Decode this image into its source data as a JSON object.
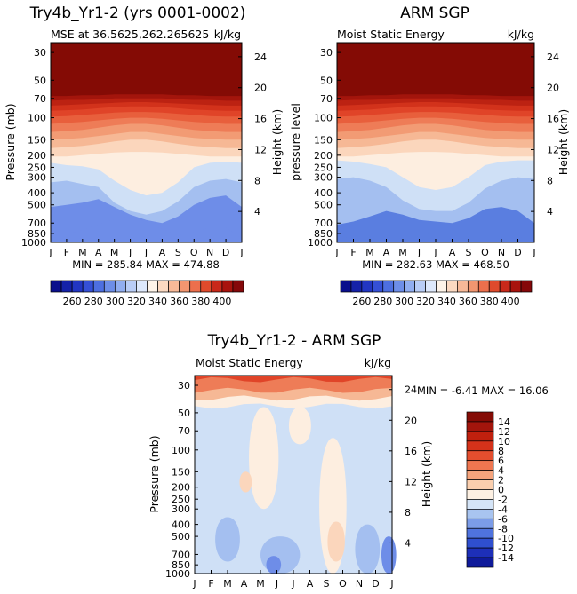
{
  "chart_data": [
    {
      "type": "heatmap",
      "title": "Try4b_Yr1-2 (yrs 0001-0002)",
      "subtitle_left": "MSE at 36.5625,262.265625",
      "subtitle_right": "kJ/kg",
      "xlabel": "",
      "ylabel": "Pressure (mb)",
      "y2label": "Height (km)",
      "months": [
        "J",
        "F",
        "M",
        "A",
        "M",
        "J",
        "J",
        "A",
        "S",
        "O",
        "N",
        "D",
        "J"
      ],
      "pressure_ticks": [
        "30",
        "50",
        "70",
        "100",
        "150",
        "200",
        "250",
        "300",
        "400",
        "500",
        "700",
        "850",
        "1000"
      ],
      "height_ticks": [
        "4",
        "8",
        "12",
        "16",
        "20",
        "24"
      ],
      "stats": "MIN = 285.84 MAX = 474.88",
      "colorbar_labels": [
        "260",
        "280",
        "300",
        "320",
        "340",
        "360",
        "380",
        "400"
      ],
      "bands": [
        [
          1000,
          880,
          850,
          800,
          720,
          650,
          620,
          690,
          780,
          880,
          820,
          760,
          760,
          930
        ],
        [
          1000,
          520,
          500,
          480,
          450,
          520,
          600,
          660,
          700,
          620,
          500,
          440,
          420,
          520
        ],
        [
          1000,
          330,
          320,
          340,
          360,
          480,
          560,
          600,
          560,
          470,
          360,
          320,
          310,
          330
        ],
        [
          1000,
          230,
          240,
          245,
          260,
          320,
          380,
          420,
          400,
          330,
          250,
          230,
          225,
          230
        ],
        [
          1000,
          205,
          205,
          200,
          195,
          190,
          188,
          188,
          190,
          195,
          200,
          205,
          205,
          205
        ],
        [
          1000,
          175,
          172,
          168,
          162,
          155,
          150,
          150,
          155,
          162,
          168,
          172,
          175,
          175
        ],
        [
          1000,
          150,
          148,
          145,
          140,
          135,
          130,
          130,
          135,
          140,
          145,
          148,
          150,
          150
        ],
        [
          1000,
          130,
          128,
          125,
          120,
          115,
          112,
          112,
          115,
          120,
          125,
          128,
          130,
          130
        ],
        [
          1000,
          112,
          110,
          108,
          105,
          102,
          100,
          100,
          102,
          105,
          108,
          110,
          112,
          112
        ],
        [
          1000,
          98,
          97,
          95,
          93,
          91,
          90,
          90,
          91,
          93,
          95,
          97,
          98,
          98
        ],
        [
          1000,
          88,
          87,
          86,
          84,
          82,
          81,
          81,
          82,
          84,
          86,
          87,
          88,
          88
        ],
        [
          1000,
          80,
          79,
          78,
          77,
          76,
          75,
          75,
          76,
          77,
          78,
          79,
          80,
          80
        ],
        [
          1000,
          73,
          72,
          72,
          71,
          70,
          70,
          70,
          70,
          71,
          72,
          72,
          73,
          73
        ],
        [
          1000,
          67,
          67,
          66,
          66,
          65,
          65,
          65,
          65,
          66,
          66,
          67,
          67,
          67
        ]
      ],
      "band_colors": [
        "#6e8de8",
        "#a4bff0",
        "#cfe0f6",
        "#fdeee0",
        "#fbd6bc",
        "#f6b895",
        "#f29b74",
        "#ee7c57",
        "#e85f3c",
        "#e04428",
        "#d2321b",
        "#bc2212",
        "#a3150c",
        "#840b05"
      ]
    },
    {
      "type": "heatmap",
      "title": "ARM SGP",
      "subtitle_left": "Moist Static Energy",
      "subtitle_right": "kJ/kg",
      "xlabel": "",
      "ylabel": "pressure level",
      "y2label": "Height (km)",
      "months": [
        "J",
        "F",
        "M",
        "A",
        "M",
        "J",
        "J",
        "A",
        "S",
        "O",
        "N",
        "D",
        "J"
      ],
      "pressure_ticks": [
        "30",
        "50",
        "70",
        "100",
        "150",
        "200",
        "250",
        "300",
        "400",
        "500",
        "700",
        "850",
        "1000"
      ],
      "height_ticks": [
        "4",
        "8",
        "12",
        "16",
        "20",
        "24"
      ],
      "stats": "MIN = 282.63 MAX = 468.50",
      "colorbar_labels": [
        "260",
        "280",
        "300",
        "320",
        "340",
        "360",
        "380",
        "400"
      ],
      "bands": [
        [
          1000,
          930,
          900,
          860,
          800,
          760,
          800,
          880,
          900,
          860,
          800,
          820,
          900,
          960
        ],
        [
          1000,
          720,
          680,
          620,
          560,
          600,
          660,
          680,
          700,
          640,
          540,
          520,
          560,
          700
        ],
        [
          1000,
          310,
          300,
          320,
          360,
          460,
          540,
          560,
          560,
          480,
          370,
          320,
          300,
          310
        ],
        [
          1000,
          220,
          225,
          235,
          250,
          300,
          360,
          380,
          360,
          300,
          240,
          225,
          220,
          220
        ],
        [
          1000,
          205,
          205,
          200,
          195,
          190,
          188,
          188,
          190,
          195,
          200,
          205,
          205,
          205
        ],
        [
          1000,
          175,
          172,
          168,
          162,
          155,
          150,
          150,
          155,
          162,
          168,
          172,
          175,
          175
        ],
        [
          1000,
          150,
          148,
          145,
          140,
          135,
          130,
          130,
          135,
          140,
          145,
          148,
          150,
          150
        ],
        [
          1000,
          130,
          128,
          125,
          120,
          115,
          112,
          112,
          115,
          120,
          125,
          128,
          130,
          130
        ],
        [
          1000,
          112,
          110,
          108,
          105,
          102,
          100,
          100,
          102,
          105,
          108,
          110,
          112,
          112
        ],
        [
          1000,
          98,
          97,
          95,
          93,
          91,
          90,
          90,
          91,
          93,
          95,
          97,
          98,
          98
        ],
        [
          1000,
          88,
          87,
          86,
          84,
          82,
          81,
          81,
          82,
          84,
          86,
          87,
          88,
          88
        ],
        [
          1000,
          80,
          79,
          78,
          77,
          76,
          75,
          75,
          76,
          77,
          78,
          79,
          80,
          80
        ],
        [
          1000,
          73,
          72,
          72,
          71,
          70,
          70,
          70,
          70,
          71,
          72,
          72,
          73,
          73
        ],
        [
          1000,
          67,
          67,
          66,
          66,
          65,
          65,
          65,
          65,
          66,
          66,
          67,
          67,
          67
        ]
      ],
      "band_colors": [
        "#5a7ee0",
        "#a4bff0",
        "#cfe0f6",
        "#fdeee0",
        "#fbd6bc",
        "#f6b895",
        "#f29b74",
        "#ee7c57",
        "#e85f3c",
        "#e04428",
        "#d2321b",
        "#bc2212",
        "#a3150c",
        "#840b05"
      ]
    },
    {
      "type": "heatmap",
      "title": "Try4b_Yr1-2 - ARM SGP",
      "subtitle_left": "Moist Static Energy",
      "subtitle_right": "kJ/kg",
      "xlabel": "",
      "ylabel": "Pressure (mb)",
      "y2label": "Height (km)",
      "months": [
        "J",
        "F",
        "M",
        "A",
        "M",
        "J",
        "J",
        "A",
        "S",
        "O",
        "N",
        "D",
        "J"
      ],
      "pressure_ticks": [
        "30",
        "50",
        "70",
        "100",
        "150",
        "200",
        "250",
        "300",
        "400",
        "500",
        "700",
        "850",
        "1000"
      ],
      "height_ticks": [
        "4",
        "8",
        "12",
        "16",
        "20",
        "24"
      ],
      "stats": "MIN =  -6.41 MAX =  16.06",
      "colorbar_labels": [
        "14",
        "12",
        "10",
        "8",
        "6",
        "4",
        "2",
        "0",
        "-2",
        "-4",
        "-6",
        "-8",
        "-10",
        "-12",
        "-14"
      ],
      "background_color": "#cfe0f6",
      "blobs": [
        {
          "month": 4.2,
          "p_top": 45,
          "p_bot": 300,
          "hw": 1.2,
          "color": "#fdeee0"
        },
        {
          "month": 6.4,
          "p_top": 45,
          "p_bot": 90,
          "hw": 0.9,
          "color": "#fdeee0"
        },
        {
          "month": 8.4,
          "p_top": 80,
          "p_bot": 1000,
          "hw": 1.1,
          "color": "#fdeee0"
        },
        {
          "month": 3.1,
          "p_top": 150,
          "p_bot": 220,
          "hw": 0.5,
          "color": "#fbd6bc"
        },
        {
          "month": 8.6,
          "p_top": 380,
          "p_bot": 800,
          "hw": 0.7,
          "color": "#fbd6bc"
        },
        {
          "month": 2.0,
          "p_top": 350,
          "p_bot": 800,
          "hw": 1.0,
          "color": "#a4bff0"
        },
        {
          "month": 5.2,
          "p_top": 500,
          "p_bot": 1000,
          "hw": 1.6,
          "color": "#a4bff0"
        },
        {
          "month": 10.5,
          "p_top": 400,
          "p_bot": 1000,
          "hw": 1.0,
          "color": "#a4bff0"
        },
        {
          "month": 11.8,
          "p_top": 500,
          "p_bot": 1000,
          "hw": 0.6,
          "color": "#6e8de8"
        },
        {
          "month": 4.8,
          "p_top": 720,
          "p_bot": 1000,
          "hw": 0.6,
          "color": "#6e8de8"
        }
      ],
      "top_bands": [
        {
          "p_max": 27,
          "color": "#e04428"
        },
        {
          "p_max": 33,
          "color": "#ee7c57"
        },
        {
          "p_max": 38,
          "color": "#f6b895"
        },
        {
          "p_max": 44,
          "color": "#fdeee0"
        }
      ],
      "colorbar_colors": [
        "#840b05",
        "#a3150c",
        "#c0200e",
        "#d5321a",
        "#e44e2e",
        "#ef7650",
        "#f6a47c",
        "#fbcfae",
        "#fdf0e2",
        "#d4e4f7",
        "#a8c4f0",
        "#7b9ce8",
        "#4f73de",
        "#2f4fcf",
        "#1d2fb8",
        "#0f1a9a"
      ]
    }
  ]
}
